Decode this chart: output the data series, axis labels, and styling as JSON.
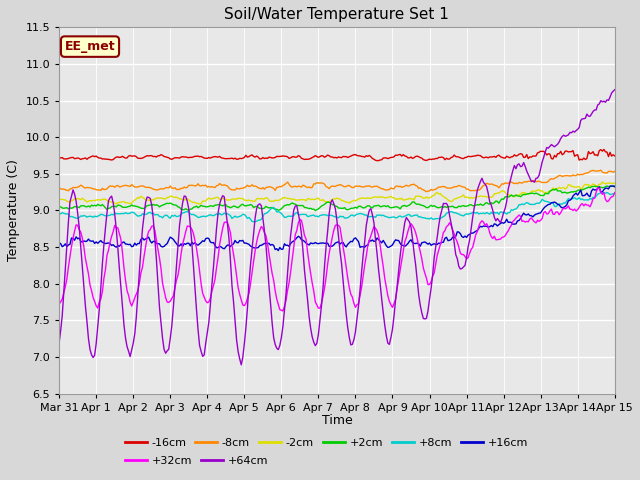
{
  "title": "Soil/Water Temperature Set 1",
  "xlabel": "Time",
  "ylabel": "Temperature (C)",
  "ylim": [
    6.5,
    11.5
  ],
  "fig_bg_color": "#d8d8d8",
  "plot_bg_color": "#e8e8e8",
  "annotation_text": "EE_met",
  "annotation_bg": "#ffffcc",
  "annotation_border": "#8B0000",
  "series": [
    {
      "label": "-16cm",
      "color": "#dd0000"
    },
    {
      "label": "-8cm",
      "color": "#ff8800"
    },
    {
      "label": "-2cm",
      "color": "#dddd00"
    },
    {
      "label": "+2cm",
      "color": "#00cc00"
    },
    {
      "label": "+8cm",
      "color": "#00cccc"
    },
    {
      "label": "+16cm",
      "color": "#0000cc"
    },
    {
      "label": "+32cm",
      "color": "#ff00ff"
    },
    {
      "label": "+64cm",
      "color": "#9900cc"
    }
  ],
  "x_tick_labels": [
    "Mar 31",
    "Apr 1",
    "Apr 2",
    "Apr 3",
    "Apr 4",
    "Apr 5",
    "Apr 6",
    "Apr 7",
    "Apr 8",
    "Apr 9",
    "Apr 10",
    "Apr 11",
    "Apr 12",
    "Apr 13",
    "Apr 14",
    "Apr 15"
  ],
  "yticks": [
    6.5,
    7.0,
    7.5,
    8.0,
    8.5,
    9.0,
    9.5,
    10.0,
    10.5,
    11.0,
    11.5
  ]
}
